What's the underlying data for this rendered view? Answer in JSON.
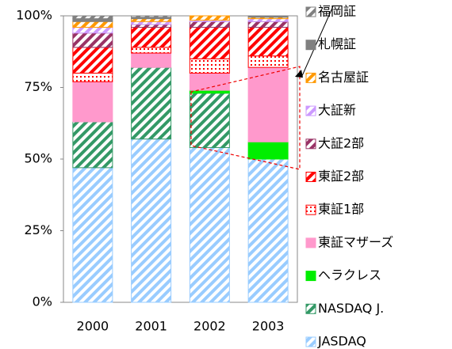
{
  "chart_data": {
    "type": "stacked_bar",
    "categories": [
      "2000",
      "2001",
      "2002",
      "2003"
    ],
    "ylim": [
      0,
      100
    ],
    "yticks": [
      {
        "value": 0,
        "label": "0%"
      },
      {
        "value": 25,
        "label": "25%"
      },
      {
        "value": 50,
        "label": "50%"
      },
      {
        "value": 75,
        "label": "75%"
      },
      {
        "value": 100,
        "label": "100%"
      }
    ],
    "legend": "right",
    "series": [
      {
        "name": "JASDAQ",
        "color": "#99ccff",
        "pattern": "stripe",
        "values": [
          47,
          57,
          54,
          50
        ]
      },
      {
        "name": "NASDAQ J.",
        "color": "#339966",
        "pattern": "stripe",
        "values": [
          16,
          25,
          19,
          0
        ]
      },
      {
        "name": "ヘラクレス",
        "color": "#00ee00",
        "pattern": "solid",
        "values": [
          0,
          0,
          1,
          6
        ]
      },
      {
        "name": "東証マザーズ",
        "color": "#ff99cc",
        "pattern": "solid",
        "values": [
          14,
          5,
          6,
          26
        ]
      },
      {
        "name": "東証1部",
        "color": "#ff0000",
        "pattern": "dots",
        "values": [
          3,
          2,
          5,
          4
        ]
      },
      {
        "name": "東証2部",
        "color": "#ff0000",
        "pattern": "stripe",
        "values": [
          9,
          7,
          11,
          10
        ]
      },
      {
        "name": "大証2部",
        "color": "#993366",
        "pattern": "stripe",
        "values": [
          5,
          1,
          2,
          2
        ]
      },
      {
        "name": "大証新",
        "color": "#cc99ff",
        "pattern": "stripe",
        "values": [
          2,
          1,
          0.5,
          1
        ]
      },
      {
        "name": "名古屋証",
        "color": "#ff9900",
        "pattern": "stripe",
        "values": [
          2,
          1,
          1.5,
          0.5
        ]
      },
      {
        "name": "札幌証",
        "color": "#808080",
        "pattern": "solid",
        "values": [
          1,
          0.5,
          0,
          0.5
        ]
      },
      {
        "name": "福岡証",
        "color": "#808080",
        "pattern": "stripe",
        "values": [
          1,
          0.5,
          0,
          0
        ]
      }
    ]
  }
}
